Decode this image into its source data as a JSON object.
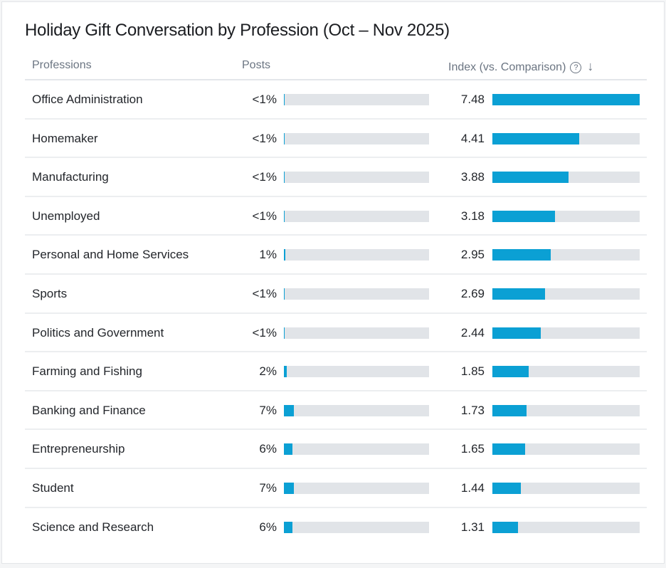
{
  "title": "Holiday Gift Conversation by Profession (Oct – Nov 2025)",
  "headers": {
    "professions": "Professions",
    "posts": "Posts",
    "index": "Index (vs. Comparison)",
    "help_icon": "?",
    "sort_icon": "↓"
  },
  "accent": "#0ba0d4",
  "index_max": 7.48,
  "rows": [
    {
      "name": "Office Administration",
      "posts": "<1%",
      "posts_pct": 0.5,
      "index": "7.48",
      "index_value": 7.48
    },
    {
      "name": "Homemaker",
      "posts": "<1%",
      "posts_pct": 0.5,
      "index": "4.41",
      "index_value": 4.41
    },
    {
      "name": "Manufacturing",
      "posts": "<1%",
      "posts_pct": 0.5,
      "index": "3.88",
      "index_value": 3.88
    },
    {
      "name": "Unemployed",
      "posts": "<1%",
      "posts_pct": 0.5,
      "index": "3.18",
      "index_value": 3.18
    },
    {
      "name": "Personal and Home Services",
      "posts": "1%",
      "posts_pct": 1,
      "index": "2.95",
      "index_value": 2.95
    },
    {
      "name": "Sports",
      "posts": "<1%",
      "posts_pct": 0.5,
      "index": "2.69",
      "index_value": 2.69
    },
    {
      "name": "Politics and Government",
      "posts": "<1%",
      "posts_pct": 0.5,
      "index": "2.44",
      "index_value": 2.44
    },
    {
      "name": "Farming and Fishing",
      "posts": "2%",
      "posts_pct": 2,
      "index": "1.85",
      "index_value": 1.85
    },
    {
      "name": "Banking and Finance",
      "posts": "7%",
      "posts_pct": 7,
      "index": "1.73",
      "index_value": 1.73
    },
    {
      "name": "Entrepreneurship",
      "posts": "6%",
      "posts_pct": 6,
      "index": "1.65",
      "index_value": 1.65
    },
    {
      "name": "Student",
      "posts": "7%",
      "posts_pct": 7,
      "index": "1.44",
      "index_value": 1.44
    },
    {
      "name": "Science and Research",
      "posts": "6%",
      "posts_pct": 6,
      "index": "1.31",
      "index_value": 1.31
    }
  ]
}
